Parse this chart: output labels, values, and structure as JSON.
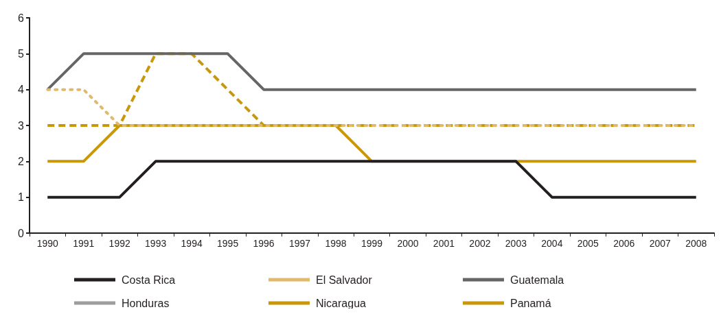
{
  "chart_data": {
    "type": "line",
    "categories": [
      "1990",
      "1991",
      "1992",
      "1993",
      "1994",
      "1995",
      "1996",
      "1997",
      "1998",
      "1999",
      "2000",
      "2001",
      "2002",
      "2003",
      "2004",
      "2005",
      "2006",
      "2007",
      "2008"
    ],
    "ylim": [
      0,
      6
    ],
    "yticks": [
      0,
      1,
      2,
      3,
      4,
      5,
      6
    ],
    "legend": "bottom",
    "series": [
      {
        "name": "Costa Rica",
        "color": "#231f20",
        "line_style": "solid",
        "values": [
          1,
          1,
          1,
          2,
          2,
          2,
          2,
          2,
          2,
          2,
          2,
          2,
          2,
          2,
          1,
          1,
          1,
          1,
          1
        ]
      },
      {
        "name": "El Salvador",
        "color": "#e0b96a",
        "line_style": "dotted",
        "values": [
          4,
          4,
          3,
          3,
          3,
          3,
          3,
          3,
          3,
          3,
          3,
          3,
          3,
          3,
          3,
          3,
          3,
          3,
          3
        ]
      },
      {
        "name": "Guatemala",
        "color": "#666666",
        "line_style": "solid",
        "values": [
          4,
          5,
          5,
          5,
          5,
          5,
          4,
          4,
          4,
          4,
          4,
          4,
          4,
          4,
          4,
          4,
          4,
          4,
          4
        ]
      },
      {
        "name": "Honduras",
        "color": "#9d9d9f",
        "line_style": "dashed",
        "values": [
          null,
          null,
          null,
          null,
          null,
          null,
          null,
          null,
          null,
          null,
          null,
          null,
          null,
          null,
          null,
          null,
          null,
          null,
          null
        ]
      },
      {
        "name": "Nicaragua",
        "color": "#c9980a",
        "line_style": "dashed",
        "values": [
          3,
          3,
          3,
          5,
          5,
          4,
          3,
          3,
          3,
          3,
          3,
          3,
          3,
          3,
          3,
          3,
          3,
          3,
          3
        ]
      },
      {
        "name": "Panamá",
        "color": "#c9980a",
        "line_style": "solid",
        "values": [
          2,
          2,
          3,
          3,
          3,
          3,
          3,
          3,
          3,
          2,
          2,
          2,
          2,
          2,
          2,
          2,
          2,
          2,
          2
        ]
      }
    ]
  }
}
